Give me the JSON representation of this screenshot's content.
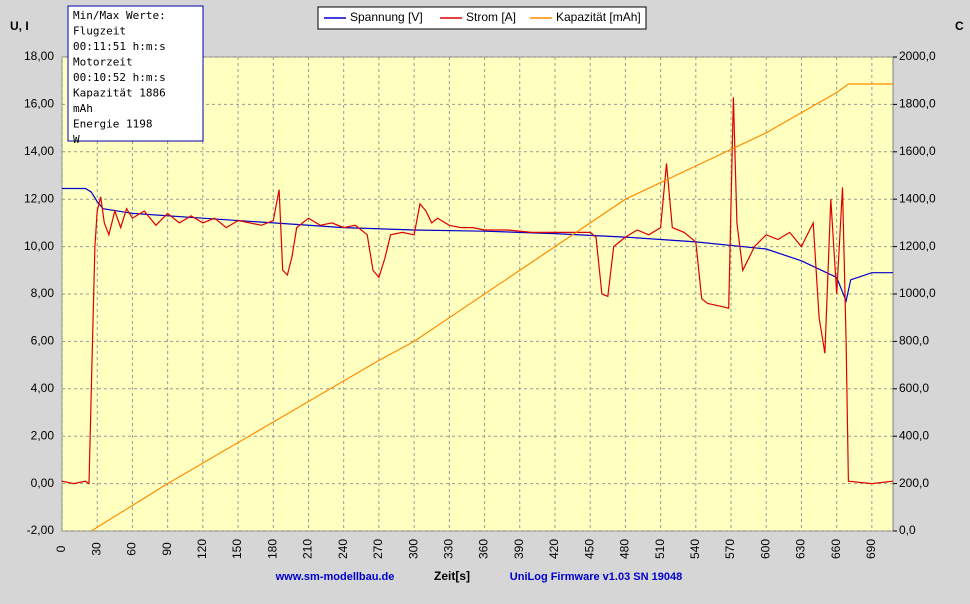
{
  "chart_data": {
    "type": "line",
    "y_label": "U, I",
    "y2_label": "C",
    "x_label": "Zeit[s]",
    "footer_left": "www.sm-modellbau.de",
    "footer_right": "UniLog Firmware v1.03 SN 19048",
    "annotations": [
      "Min/Max Werte:",
      "Flugzeit",
      "00:11:51 h:m:s",
      "Motorzeit",
      "00:10:52 h:m:s",
      "Kapazität   1886",
      "mAh",
      "Energie     1198",
      "W"
    ],
    "grid": true,
    "xlim": [
      0,
      708
    ],
    "xticks": [
      0,
      30,
      60,
      90,
      120,
      150,
      180,
      210,
      240,
      270,
      300,
      330,
      360,
      390,
      420,
      450,
      480,
      510,
      540,
      570,
      600,
      630,
      660,
      690
    ],
    "ylim": [
      -2,
      18
    ],
    "yticks": [
      {
        "value": -2,
        "label": "-2,00"
      },
      {
        "value": 0,
        "label": "0,00"
      },
      {
        "value": 2,
        "label": "2,00"
      },
      {
        "value": 4,
        "label": "4,00"
      },
      {
        "value": 6,
        "label": "6,00"
      },
      {
        "value": 8,
        "label": "8,00"
      },
      {
        "value": 10,
        "label": "10,00"
      },
      {
        "value": 12,
        "label": "12,00"
      },
      {
        "value": 14,
        "label": "14,00"
      },
      {
        "value": 16,
        "label": "16,00"
      },
      {
        "value": 18,
        "label": "18,00"
      }
    ],
    "y2lim": [
      0,
      2000
    ],
    "y2ticks": [
      {
        "value": 0,
        "label": "0,0"
      },
      {
        "value": 200,
        "label": "200,0"
      },
      {
        "value": 400,
        "label": "400,0"
      },
      {
        "value": 600,
        "label": "600,0"
      },
      {
        "value": 800,
        "label": "800,0"
      },
      {
        "value": 1000,
        "label": "1000,0"
      },
      {
        "value": 1200,
        "label": "1200,0"
      },
      {
        "value": 1400,
        "label": "1400,0"
      },
      {
        "value": 1600,
        "label": "1600,0"
      },
      {
        "value": 1800,
        "label": "1800,0"
      },
      {
        "value": 2000,
        "label": "2000,0"
      }
    ],
    "series": [
      {
        "name": "Spannung [V]",
        "color": "#0000cc",
        "x": [
          0,
          20,
          25,
          30,
          35,
          60,
          120,
          180,
          240,
          300,
          360,
          420,
          480,
          540,
          600,
          630,
          660,
          668,
          672,
          690,
          708
        ],
        "values": [
          12.45,
          12.45,
          12.3,
          11.9,
          11.6,
          11.4,
          11.2,
          11.0,
          10.8,
          10.7,
          10.65,
          10.55,
          10.4,
          10.2,
          9.9,
          9.4,
          8.7,
          7.7,
          8.6,
          8.9,
          8.9
        ]
      },
      {
        "name": "Strom [A]",
        "color": "#dd0000",
        "x": [
          0,
          10,
          20,
          23,
          26,
          28,
          30,
          33,
          36,
          40,
          45,
          50,
          55,
          60,
          70,
          80,
          90,
          100,
          110,
          120,
          130,
          140,
          150,
          160,
          170,
          180,
          185,
          188,
          192,
          196,
          200,
          210,
          220,
          230,
          240,
          250,
          260,
          265,
          270,
          275,
          280,
          290,
          300,
          305,
          310,
          315,
          320,
          330,
          340,
          350,
          360,
          380,
          400,
          420,
          440,
          450,
          455,
          460,
          465,
          470,
          480,
          490,
          500,
          510,
          515,
          520,
          530,
          540,
          545,
          550,
          560,
          568,
          572,
          575,
          580,
          590,
          600,
          610,
          620,
          630,
          640,
          645,
          650,
          655,
          660,
          665,
          668,
          670,
          690,
          708
        ],
        "values": [
          0.1,
          0.0,
          0.1,
          0.0,
          6.0,
          10.0,
          11.5,
          12.1,
          11.0,
          10.5,
          11.5,
          10.8,
          11.6,
          11.2,
          11.5,
          10.9,
          11.4,
          11.0,
          11.3,
          11.0,
          11.2,
          10.8,
          11.1,
          11.0,
          10.9,
          11.1,
          12.4,
          9.0,
          8.8,
          9.6,
          10.8,
          11.2,
          10.9,
          11.0,
          10.8,
          10.9,
          10.5,
          9.0,
          8.7,
          9.5,
          10.5,
          10.6,
          10.5,
          11.8,
          11.5,
          11.0,
          11.2,
          10.9,
          10.8,
          10.8,
          10.7,
          10.7,
          10.6,
          10.6,
          10.6,
          10.6,
          10.4,
          8.0,
          7.9,
          10.0,
          10.4,
          10.7,
          10.5,
          10.8,
          13.5,
          10.8,
          10.6,
          10.2,
          7.8,
          7.6,
          7.5,
          7.4,
          16.3,
          11.0,
          9.0,
          10.0,
          10.5,
          10.3,
          10.6,
          10.0,
          11.0,
          7.0,
          5.5,
          12.0,
          8.0,
          12.5,
          6.0,
          0.1,
          0.0,
          0.1
        ]
      },
      {
        "name": "Kapazität [mAh]",
        "color": "#ff8c00",
        "axis": "y2",
        "x": [
          25,
          90,
          180,
          270,
          300,
          420,
          480,
          540,
          600,
          660,
          670,
          708
        ],
        "values": [
          0,
          200,
          460,
          720,
          800,
          1200,
          1400,
          1540,
          1680,
          1850,
          1886,
          1886
        ]
      }
    ]
  }
}
